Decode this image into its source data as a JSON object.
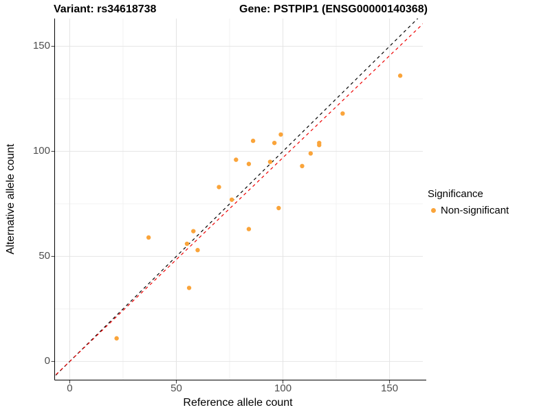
{
  "chart_data": {
    "type": "scatter",
    "title_left": "Variant: rs34618738",
    "title_right": "Gene: PSTPIP1 (ENSG00000140368)",
    "xlabel": "Reference allele count",
    "ylabel": "Alternative allele count",
    "x_ticks": [
      "0",
      "50",
      "100",
      "150"
    ],
    "x_tick_values": [
      0,
      50,
      100,
      150
    ],
    "y_ticks": [
      "0",
      "50",
      "100",
      "150"
    ],
    "y_tick_values": [
      0,
      50,
      100,
      150
    ],
    "x_minor_values": [
      25,
      75,
      125
    ],
    "y_minor_values": [
      25,
      75,
      125
    ],
    "xlim": [
      -6.9,
      165.6
    ],
    "ylim": [
      -8.7,
      163.2
    ],
    "grid": "on",
    "legend_position": "right",
    "series": [
      {
        "name": "Non-significant",
        "color": "#FAA43A",
        "points": [
          [
            22,
            11
          ],
          [
            37,
            59
          ],
          [
            55,
            56
          ],
          [
            56,
            35
          ],
          [
            58,
            62
          ],
          [
            60,
            53
          ],
          [
            70,
            83
          ],
          [
            76,
            77
          ],
          [
            78,
            96
          ],
          [
            84,
            63
          ],
          [
            84,
            94
          ],
          [
            86,
            105
          ],
          [
            94,
            95
          ],
          [
            96,
            104
          ],
          [
            98,
            73
          ],
          [
            99,
            108
          ],
          [
            109,
            93
          ],
          [
            113,
            99
          ],
          [
            117,
            103
          ],
          [
            117,
            104
          ],
          [
            128,
            118
          ],
          [
            155,
            136
          ]
        ]
      }
    ],
    "lines": [
      {
        "name": "identity-line",
        "slope": 1,
        "intercept": 0,
        "color": "#000000",
        "style": "dashed"
      },
      {
        "name": "fit-line",
        "slope": 0.97,
        "intercept": 0,
        "color": "#EE0000",
        "style": "dashed"
      }
    ],
    "legend": {
      "title": "Significance",
      "items": [
        {
          "label": "Non-significant",
          "color": "#FAA43A"
        }
      ]
    },
    "colors": {
      "major_grid": "#E4E4E4",
      "minor_grid": "#F2F2F2",
      "axis_line": "#000000",
      "tick_mark": "#333333",
      "tick_text": "#4d4d4d"
    }
  }
}
